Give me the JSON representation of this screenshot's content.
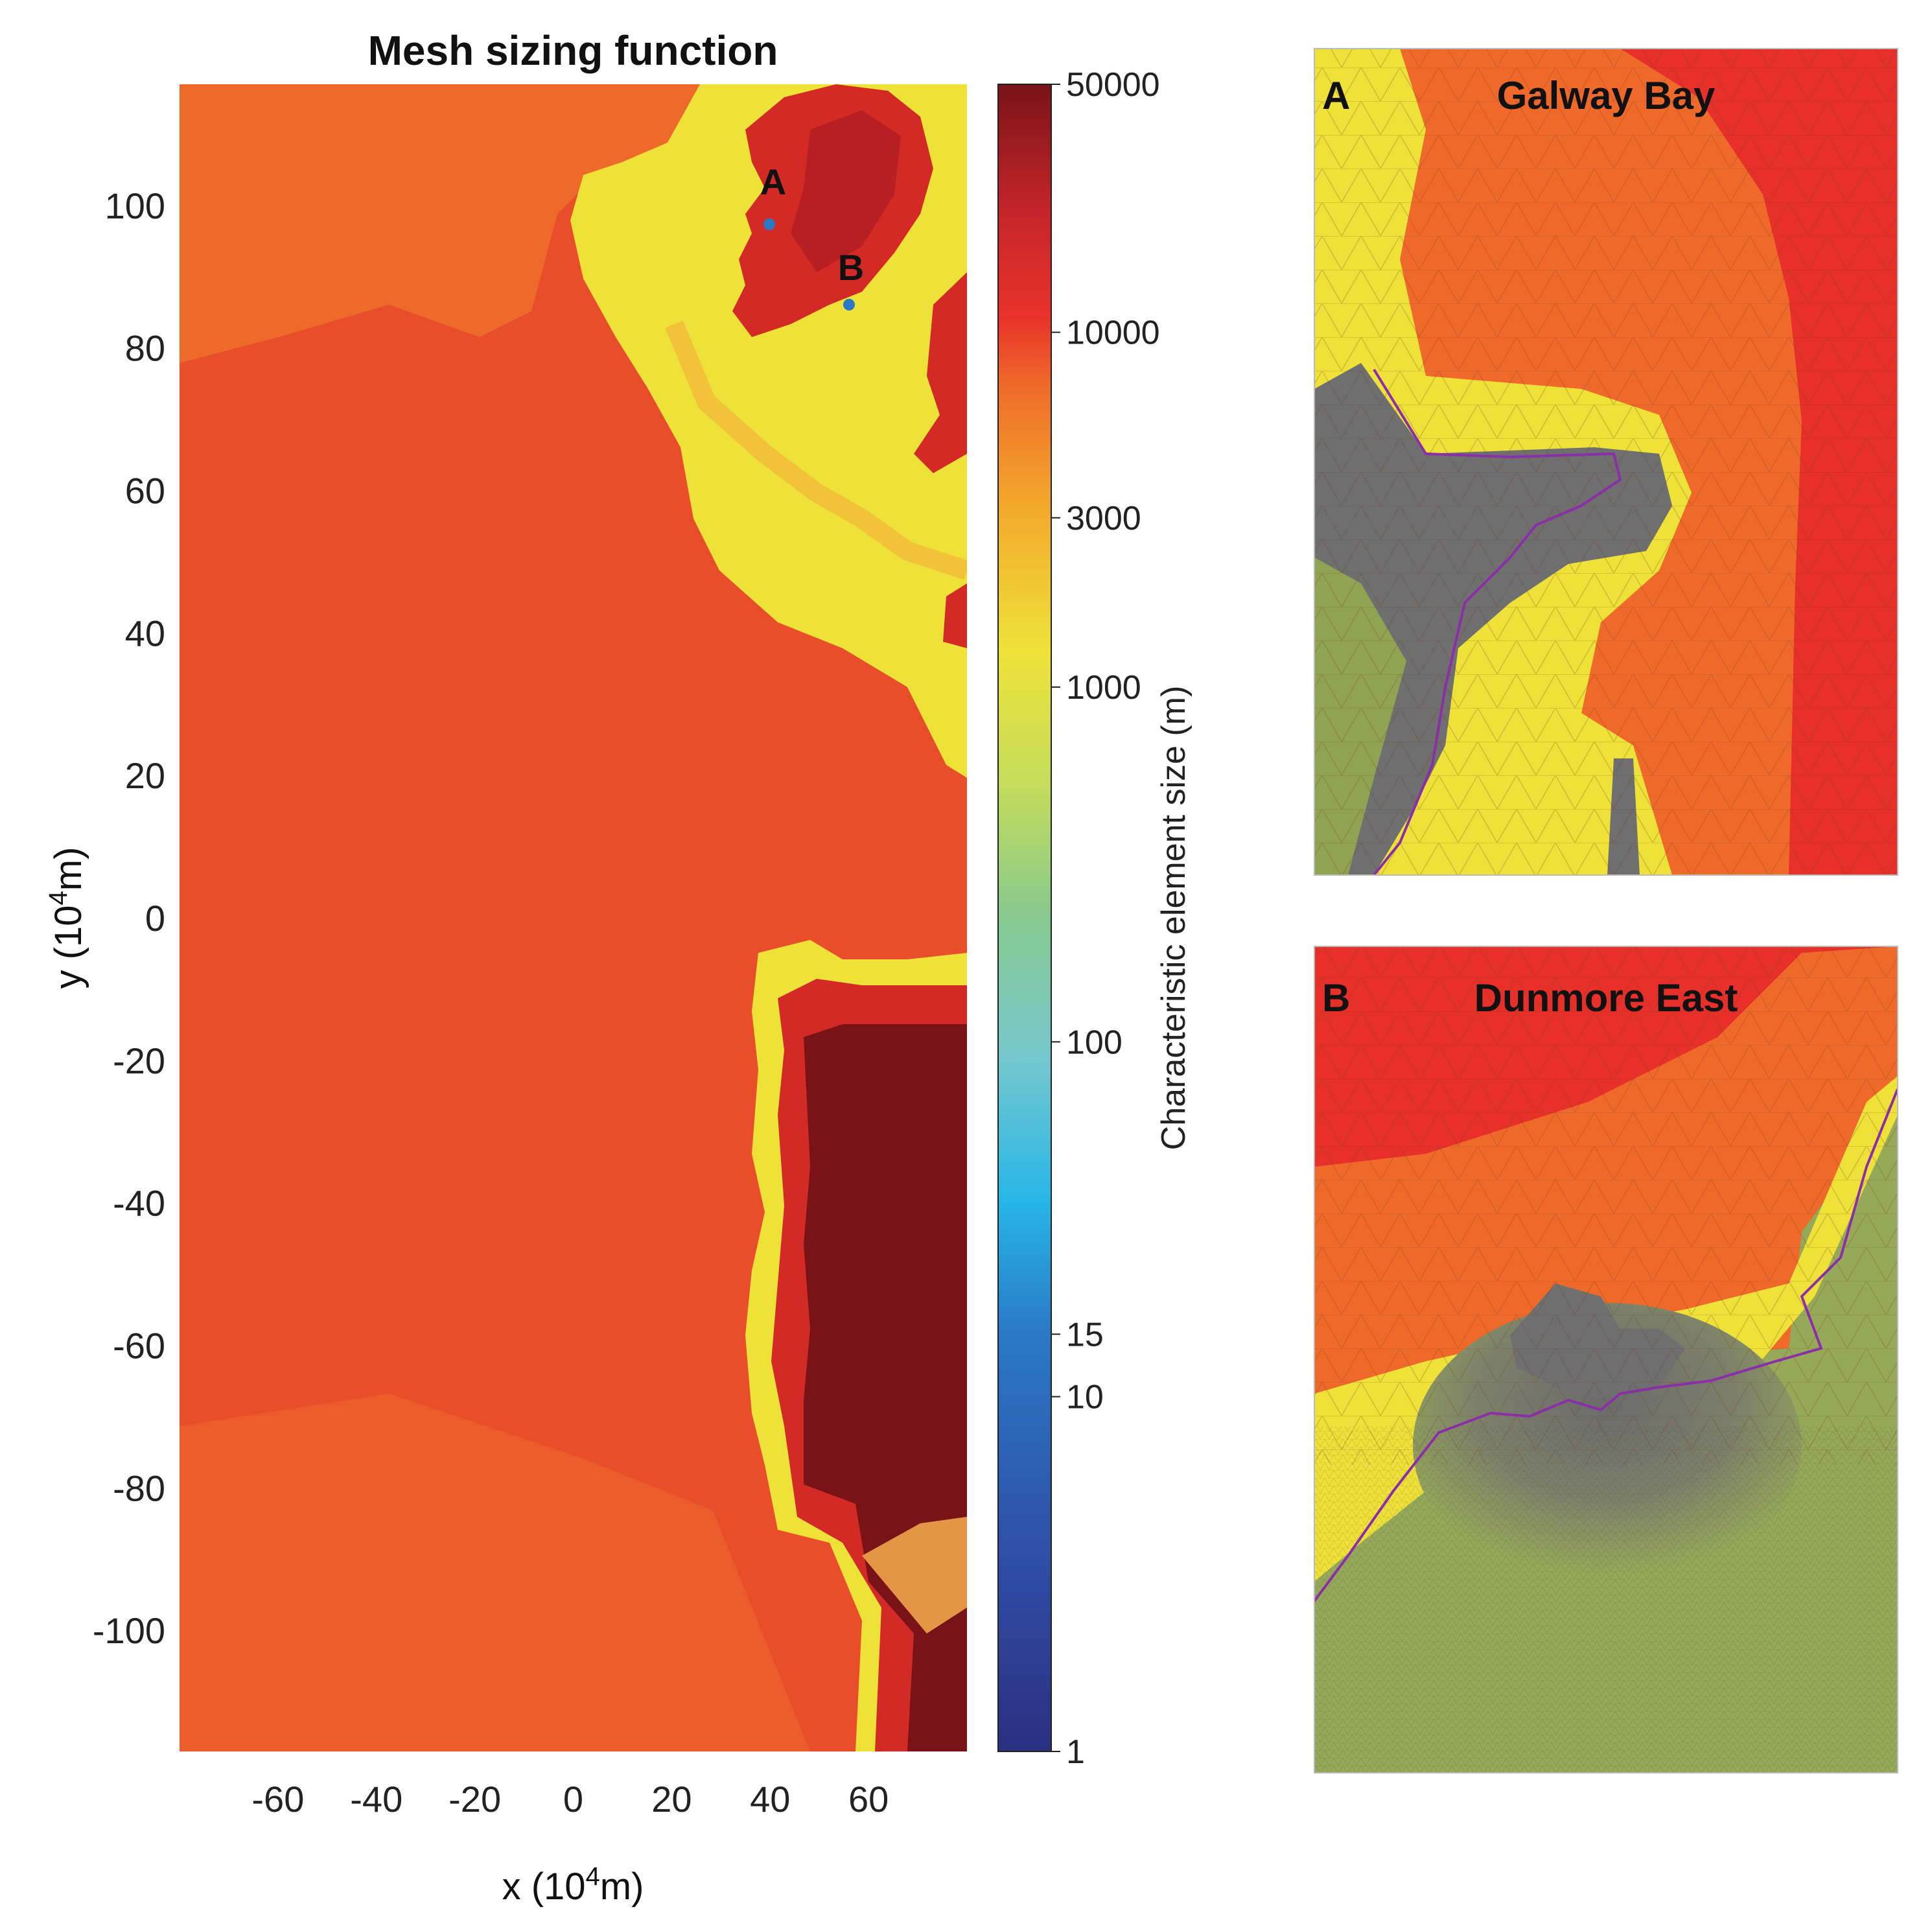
{
  "chart_data": [
    {
      "type": "heatmap",
      "title": "Mesh sizing function",
      "xlabel": "x (10",
      "xlabel_sup": "4",
      "xlabel_tail": "m)",
      "ylabel": "y (10",
      "ylabel_sup": "4",
      "ylabel_tail": "m)",
      "xlim": [
        -80,
        80
      ],
      "ylim": [
        -117,
        117
      ],
      "x_ticks": [
        -60,
        -40,
        -20,
        0,
        20,
        40,
        60
      ],
      "y_ticks": [
        100,
        80,
        60,
        40,
        20,
        0,
        -20,
        -40,
        -60,
        -80,
        -100
      ],
      "colorbar": {
        "label": "Characteristic element size (m)",
        "scale": "log",
        "range": [
          1,
          50000
        ],
        "ticks": [
          50000,
          10000,
          3000,
          1000,
          100,
          15,
          10,
          1
        ]
      },
      "annotations": [
        {
          "label": "A",
          "x": 40,
          "y": 97
        },
        {
          "label": "B",
          "x": 56,
          "y": 86
        }
      ]
    },
    {
      "type": "heatmap",
      "panel_letter": "A",
      "title": "Galway Bay"
    },
    {
      "type": "heatmap",
      "panel_letter": "B",
      "title": "Dunmore East"
    }
  ],
  "colors": {
    "ocean_background": "#e94e2a",
    "land_interior": "#7a1318",
    "coastal_fine": "#eee238",
    "mesh_gray": "#6e6e6e",
    "mesh_green": "#8fa353",
    "coastline": "#8a2fa8"
  }
}
